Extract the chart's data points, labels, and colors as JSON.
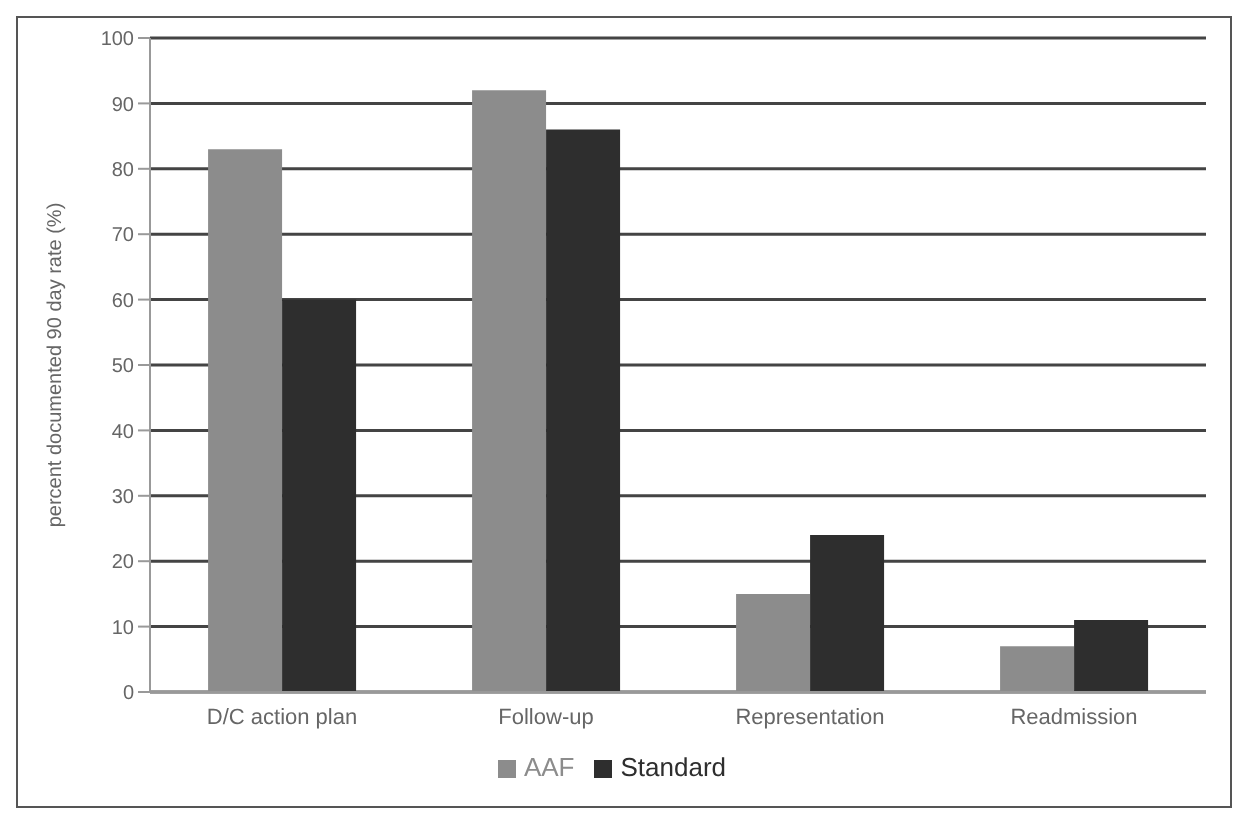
{
  "chart_data": {
    "type": "bar",
    "ylabel": "percent documented 90 day rate (%)",
    "categories": [
      "D/C action plan",
      "Follow-up",
      "Representation",
      "Readmission"
    ],
    "series": [
      {
        "name": "AAF",
        "color": "#8c8c8c",
        "values": [
          83,
          92,
          15,
          7
        ]
      },
      {
        "name": "Standard",
        "color": "#2e2e2e",
        "values": [
          60,
          86,
          24,
          11
        ]
      }
    ],
    "ylim": [
      0,
      100
    ],
    "yticks": [
      0,
      10,
      20,
      30,
      40,
      50,
      60,
      70,
      80,
      90,
      100
    ],
    "grid": "y",
    "legend": "bottom"
  }
}
